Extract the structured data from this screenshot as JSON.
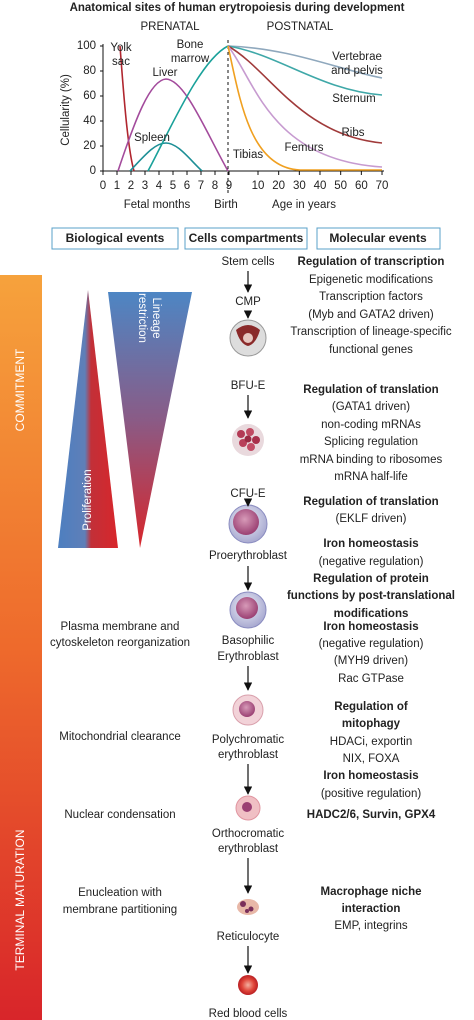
{
  "chart": {
    "title": "Anatomical sites of human erytropoiesis during development",
    "prenatal": "PRENATAL",
    "postnatal": "POSTNATAL",
    "y_label": "Cellularity (%)",
    "x_label_fetal": "Fetal months",
    "x_label_birth": "Birth",
    "x_label_age": "Age in years",
    "yticks": [
      0,
      20,
      40,
      60,
      80,
      100
    ],
    "xticks_months": [
      0,
      1,
      2,
      3,
      4,
      5,
      6,
      7,
      8,
      9
    ],
    "xticks_years": [
      10,
      20,
      30,
      40,
      50,
      60,
      70
    ],
    "curve_labels": [
      "Yolk",
      "sac",
      "Liver",
      "Bone",
      "marrow",
      "Spleen",
      "Vertebrae",
      "and pelvis",
      "Sternum",
      "Ribs",
      "Femurs",
      "Tibias"
    ]
  },
  "headers": [
    "Biological events",
    "Cells compartments",
    "Molecular events"
  ],
  "side_labels": [
    "COMMITMENT",
    "TERMINAL MATURATION"
  ],
  "triangles": [
    "Proliferation",
    "Lineage",
    "restriction"
  ],
  "cells": [
    "Stem cells",
    "CMP",
    "BFU-E",
    "CFU-E",
    "Proerythroblast",
    "Basophilic",
    "Erythroblast",
    "Polychromatic",
    "erythroblast",
    "Orthocromatic",
    "erythroblast",
    "Reticulocyte",
    "Red blood cells"
  ],
  "biological_events": [
    "Plasma membrane and",
    "cytoskeleton reorganization",
    "Mitochondrial clearance",
    "Nuclear condensation",
    "Enucleation with",
    "membrane partitioning"
  ],
  "molecular_events": [
    {
      "text": "Regulation of transcription",
      "bold": true
    },
    {
      "text": "Epigenetic modifications",
      "bold": false
    },
    {
      "text": "Transcription factors",
      "bold": false
    },
    {
      "text": "(Myb and GATA2 driven)",
      "bold": false
    },
    {
      "text": "Transcription of lineage-specific",
      "bold": false
    },
    {
      "text": "functional genes",
      "bold": false
    },
    {
      "text": "Regulation of translation",
      "bold": true
    },
    {
      "text": "(GATA1 driven)",
      "bold": false
    },
    {
      "text": "non-coding mRNAs",
      "bold": false
    },
    {
      "text": "Splicing regulation",
      "bold": false
    },
    {
      "text": "mRNA binding to ribosomes",
      "bold": false
    },
    {
      "text": "mRNA half-life",
      "bold": false
    },
    {
      "text": "Regulation of translation",
      "bold": true
    },
    {
      "text": "(EKLF driven)",
      "bold": false
    },
    {
      "text": "Iron homeostasis",
      "bold": true
    },
    {
      "text": "(negative regulation)",
      "bold": false
    },
    {
      "text": "Regulation of protein",
      "bold": true
    },
    {
      "text": "functions by post-translational",
      "bold": true
    },
    {
      "text": "modifications",
      "bold": true
    },
    {
      "text": "Iron homeostasis",
      "bold": true
    },
    {
      "text": "(negative regulation)",
      "bold": false
    },
    {
      "text": "(MYH9 driven)",
      "bold": false
    },
    {
      "text": "Rac GTPase",
      "bold": false
    },
    {
      "text": "Regulation of",
      "bold": true
    },
    {
      "text": "mitophagy",
      "bold": true
    },
    {
      "text": "HDACi, exportin",
      "bold": false
    },
    {
      "text": "NIX, FOXA",
      "bold": false
    },
    {
      "text": "Iron homeostasis",
      "bold": true
    },
    {
      "text": "(positive regulation)",
      "bold": false
    },
    {
      "text": "HADC2/6, Survin, GPX4",
      "bold": true
    },
    {
      "text": "Macrophage niche",
      "bold": true
    },
    {
      "text": "interaction",
      "bold": true
    },
    {
      "text": "EMP, integrins",
      "bold": false
    }
  ]
}
